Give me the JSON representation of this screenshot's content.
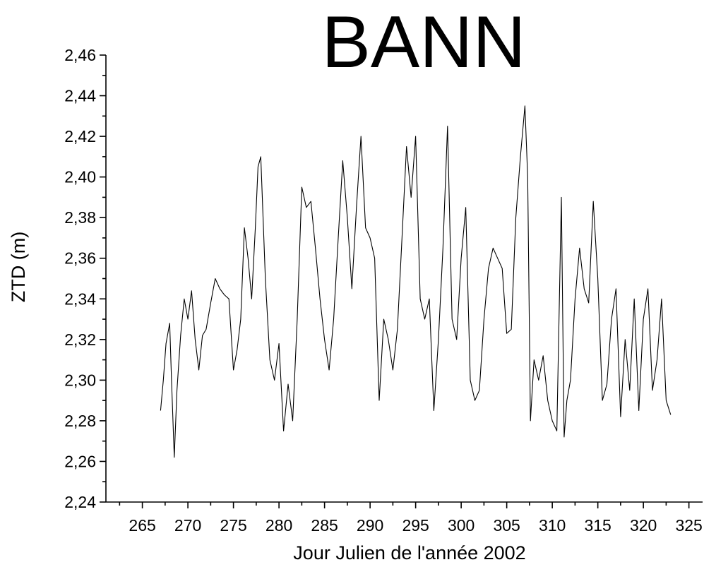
{
  "chart_data": {
    "type": "line",
    "title": "BANN",
    "xlabel": "Jour Julien de l'année 2002",
    "ylabel": "ZTD (m)",
    "xlim": [
      261,
      326.5
    ],
    "ylim": [
      2.24,
      2.46
    ],
    "xticks": [
      265,
      270,
      275,
      280,
      285,
      290,
      295,
      300,
      305,
      310,
      315,
      320,
      325
    ],
    "xtick_labels": [
      "265",
      "270",
      "275",
      "280",
      "285",
      "290",
      "295",
      "300",
      "305",
      "310",
      "315",
      "320",
      "325"
    ],
    "yticks": [
      2.24,
      2.26,
      2.28,
      2.3,
      2.32,
      2.34,
      2.36,
      2.38,
      2.4,
      2.42,
      2.44,
      2.46
    ],
    "ytick_labels": [
      "2,24",
      "2,26",
      "2,28",
      "2,30",
      "2,32",
      "2,34",
      "2,36",
      "2,38",
      "2,40",
      "2,42",
      "2,44",
      "2,46"
    ],
    "grid": false,
    "line_color": "#000000",
    "series": [
      {
        "x": [
          267.0,
          267.3,
          267.6,
          268.0,
          268.2,
          268.5,
          268.8,
          269.2,
          269.6,
          270.0,
          270.4,
          270.8,
          271.2,
          271.6,
          272.0,
          272.5,
          273.0,
          273.5,
          274.0,
          274.5,
          275.0,
          275.4,
          275.8,
          276.2,
          276.6,
          277.0,
          277.4,
          277.7,
          278.0,
          278.5,
          279.0,
          279.5,
          280.0,
          280.5,
          281.0,
          281.5,
          282.0,
          282.5,
          283.0,
          283.5,
          284.0,
          284.5,
          285.0,
          285.5,
          286.0,
          286.5,
          287.0,
          287.5,
          288.0,
          288.5,
          289.0,
          289.5,
          290.0,
          290.5,
          291.0,
          291.5,
          292.0,
          292.5,
          293.0,
          293.5,
          294.0,
          294.5,
          295.0,
          295.5,
          296.0,
          296.5,
          297.0,
          297.5,
          298.0,
          298.5,
          299.0,
          299.5,
          300.0,
          300.5,
          301.0,
          301.5,
          302.0,
          302.5,
          303.0,
          303.5,
          304.0,
          304.5,
          305.0,
          305.5,
          306.0,
          306.5,
          307.0,
          307.3,
          307.6,
          308.0,
          308.5,
          309.0,
          309.5,
          310.0,
          310.5,
          311.0,
          311.3,
          311.6,
          312.0,
          312.5,
          313.0,
          313.5,
          314.0,
          314.5,
          315.0,
          315.5,
          316.0,
          316.5,
          317.0,
          317.5,
          318.0,
          318.5,
          319.0,
          319.5,
          320.0,
          320.5,
          321.0,
          321.5,
          322.0,
          322.5,
          323.0
        ],
        "y": [
          2.285,
          2.3,
          2.318,
          2.328,
          2.3,
          2.262,
          2.295,
          2.322,
          2.34,
          2.33,
          2.344,
          2.32,
          2.305,
          2.322,
          2.325,
          2.338,
          2.35,
          2.345,
          2.342,
          2.34,
          2.305,
          2.315,
          2.33,
          2.375,
          2.36,
          2.34,
          2.375,
          2.405,
          2.41,
          2.35,
          2.31,
          2.3,
          2.318,
          2.275,
          2.298,
          2.28,
          2.33,
          2.395,
          2.385,
          2.388,
          2.365,
          2.34,
          2.32,
          2.305,
          2.33,
          2.37,
          2.408,
          2.38,
          2.345,
          2.385,
          2.42,
          2.375,
          2.37,
          2.36,
          2.29,
          2.33,
          2.32,
          2.305,
          2.325,
          2.37,
          2.415,
          2.39,
          2.42,
          2.34,
          2.33,
          2.34,
          2.285,
          2.32,
          2.365,
          2.425,
          2.33,
          2.32,
          2.36,
          2.385,
          2.3,
          2.29,
          2.295,
          2.33,
          2.355,
          2.365,
          2.36,
          2.355,
          2.323,
          2.325,
          2.38,
          2.41,
          2.435,
          2.4,
          2.28,
          2.31,
          2.3,
          2.312,
          2.29,
          2.28,
          2.275,
          2.39,
          2.272,
          2.29,
          2.3,
          2.34,
          2.365,
          2.345,
          2.338,
          2.388,
          2.35,
          2.29,
          2.298,
          2.33,
          2.345,
          2.282,
          2.32,
          2.295,
          2.34,
          2.285,
          2.33,
          2.345,
          2.295,
          2.31,
          2.34,
          2.29,
          2.283
        ]
      }
    ]
  }
}
